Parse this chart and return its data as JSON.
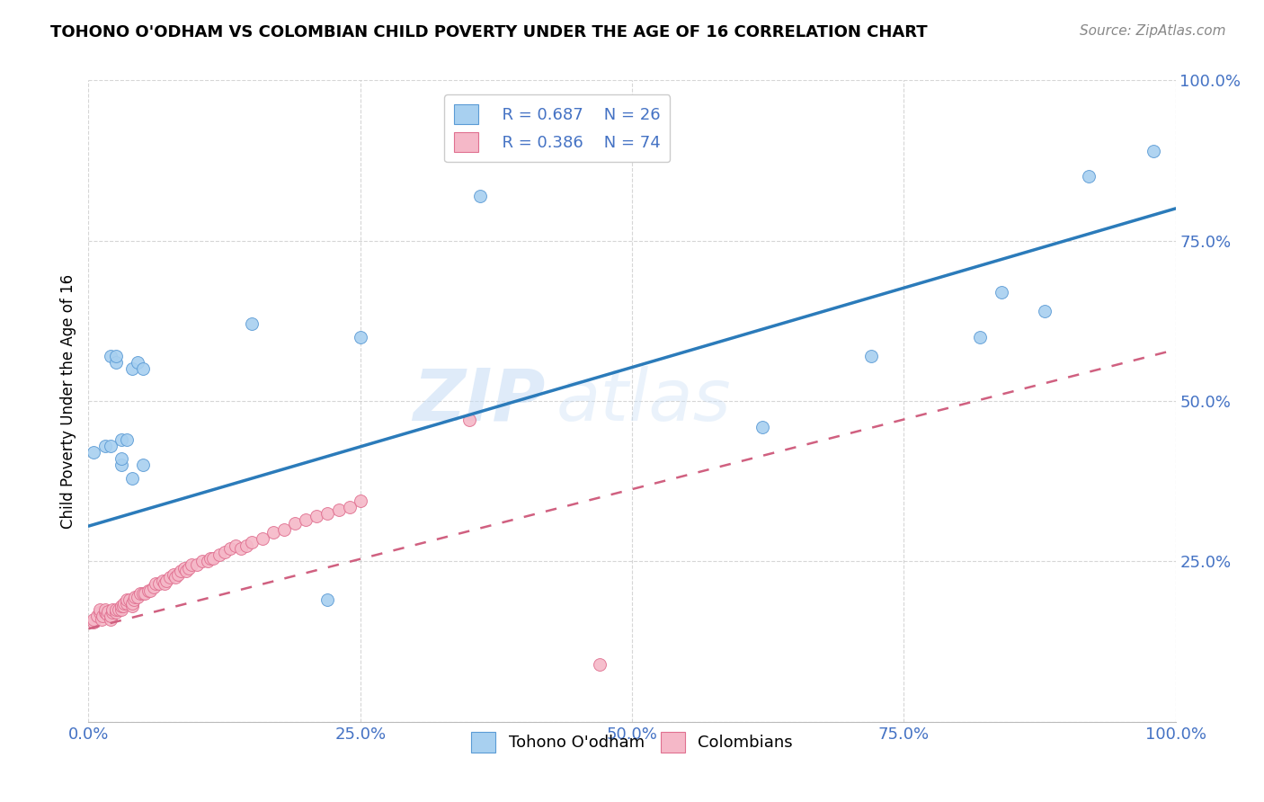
{
  "title": "TOHONO O'ODHAM VS COLOMBIAN CHILD POVERTY UNDER THE AGE OF 16 CORRELATION CHART",
  "source": "Source: ZipAtlas.com",
  "ylabel": "Child Poverty Under the Age of 16",
  "blue_label": "Tohono O'odham",
  "pink_label": "Colombians",
  "blue_R": "R = 0.687",
  "blue_N": "N = 26",
  "pink_R": "R = 0.386",
  "pink_N": "N = 74",
  "blue_color": "#A8D0F0",
  "pink_color": "#F5B8C8",
  "blue_edge_color": "#5B9BD5",
  "pink_edge_color": "#E07090",
  "blue_line_color": "#2B7BBA",
  "pink_line_color": "#D06080",
  "axis_color": "#4472C4",
  "grid_color": "#CCCCCC",
  "background_color": "#FFFFFF",
  "watermark_zip": "ZIP",
  "watermark_atlas": "atlas",
  "blue_points_x": [
    0.005,
    0.015,
    0.02,
    0.02,
    0.025,
    0.025,
    0.03,
    0.03,
    0.03,
    0.035,
    0.04,
    0.04,
    0.045,
    0.05,
    0.05,
    0.15,
    0.22,
    0.25,
    0.36,
    0.62,
    0.72,
    0.82,
    0.84,
    0.88,
    0.92,
    0.98
  ],
  "blue_points_y": [
    0.42,
    0.43,
    0.43,
    0.57,
    0.56,
    0.57,
    0.4,
    0.41,
    0.44,
    0.44,
    0.38,
    0.55,
    0.56,
    0.4,
    0.55,
    0.62,
    0.19,
    0.6,
    0.82,
    0.46,
    0.57,
    0.6,
    0.67,
    0.64,
    0.85,
    0.89
  ],
  "pink_points_x": [
    0.005,
    0.005,
    0.008,
    0.01,
    0.01,
    0.012,
    0.013,
    0.015,
    0.015,
    0.017,
    0.018,
    0.02,
    0.02,
    0.022,
    0.022,
    0.025,
    0.025,
    0.028,
    0.03,
    0.03,
    0.032,
    0.033,
    0.035,
    0.035,
    0.038,
    0.04,
    0.04,
    0.042,
    0.043,
    0.045,
    0.048,
    0.05,
    0.052,
    0.055,
    0.057,
    0.06,
    0.062,
    0.065,
    0.068,
    0.07,
    0.072,
    0.075,
    0.078,
    0.08,
    0.082,
    0.085,
    0.088,
    0.09,
    0.092,
    0.095,
    0.1,
    0.105,
    0.11,
    0.112,
    0.115,
    0.12,
    0.125,
    0.13,
    0.135,
    0.14,
    0.145,
    0.15,
    0.16,
    0.17,
    0.18,
    0.19,
    0.2,
    0.21,
    0.22,
    0.23,
    0.24,
    0.25,
    0.35,
    0.47
  ],
  "pink_points_y": [
    0.155,
    0.16,
    0.165,
    0.17,
    0.175,
    0.16,
    0.165,
    0.17,
    0.175,
    0.168,
    0.172,
    0.16,
    0.165,
    0.17,
    0.175,
    0.17,
    0.175,
    0.175,
    0.175,
    0.18,
    0.18,
    0.185,
    0.185,
    0.19,
    0.19,
    0.18,
    0.185,
    0.19,
    0.195,
    0.195,
    0.2,
    0.2,
    0.2,
    0.205,
    0.205,
    0.21,
    0.215,
    0.215,
    0.22,
    0.215,
    0.22,
    0.225,
    0.23,
    0.225,
    0.23,
    0.235,
    0.24,
    0.235,
    0.24,
    0.245,
    0.245,
    0.25,
    0.25,
    0.255,
    0.255,
    0.26,
    0.265,
    0.27,
    0.275,
    0.27,
    0.275,
    0.28,
    0.285,
    0.295,
    0.3,
    0.31,
    0.315,
    0.32,
    0.325,
    0.33,
    0.335,
    0.345,
    0.47,
    0.09
  ],
  "blue_line_x0": 0.0,
  "blue_line_y0": 0.305,
  "blue_line_x1": 1.0,
  "blue_line_y1": 0.8,
  "pink_line_x0": 0.0,
  "pink_line_y0": 0.145,
  "pink_line_x1": 1.0,
  "pink_line_y1": 0.58,
  "xlim": [
    0.0,
    1.0
  ],
  "ylim": [
    0.0,
    1.0
  ],
  "xticks": [
    0.0,
    0.25,
    0.5,
    0.75,
    1.0
  ],
  "xtick_labels": [
    "0.0%",
    "25.0%",
    "50.0%",
    "75.0%",
    "100.0%"
  ],
  "ytick_labels_right": [
    "",
    "25.0%",
    "50.0%",
    "75.0%",
    "100.0%"
  ],
  "yticks": [
    0.0,
    0.25,
    0.5,
    0.75,
    1.0
  ],
  "title_fontsize": 13,
  "legend_fontsize": 13,
  "tick_fontsize": 13,
  "marker_size": 100
}
